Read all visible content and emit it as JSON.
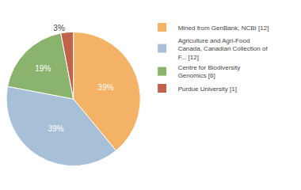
{
  "chart_data": {
    "type": "pie",
    "categories": [
      "Mined from GenBank, NCBI [12]",
      "Agriculture and Agri-Food\nCanada, Canadian Collection of\nF... [12]",
      "Centre for Biodiversity\nGenomics [6]",
      "Purdue University [1]"
    ],
    "values": [
      39,
      39,
      19,
      3
    ],
    "value_labels": [
      "39%",
      "39%",
      "19%",
      "3%"
    ],
    "colors": [
      "#f4b266",
      "#a8bfd8",
      "#8ab36e",
      "#c0614a"
    ],
    "data_labels": true,
    "legend": "right"
  }
}
